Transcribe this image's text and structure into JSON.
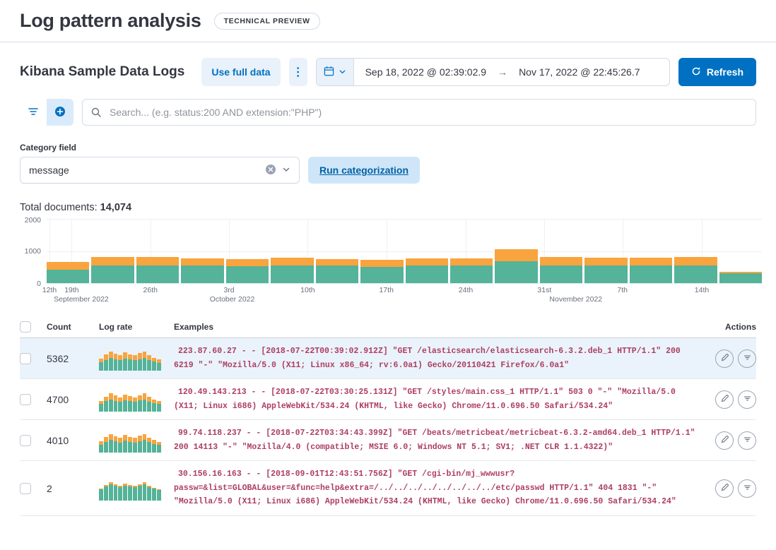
{
  "page": {
    "title": "Log pattern analysis",
    "badge": "TECHNICAL PREVIEW"
  },
  "toolbar": {
    "heading": "Kibana Sample Data Logs",
    "use_full_data": "Use full data",
    "dots_icon": "⋮",
    "date_start": "Sep 18, 2022 @ 02:39:02.9",
    "date_arrow": "→",
    "date_end": "Nov 17, 2022 @ 22:45:26.7",
    "refresh": "Refresh"
  },
  "search": {
    "placeholder": "Search... (e.g. status:200 AND extension:\"PHP\")"
  },
  "category": {
    "label": "Category field",
    "selected": "message",
    "run_button": "Run categorization"
  },
  "summary": {
    "total_label": "Total documents: ",
    "total_value": "14,074"
  },
  "chart_data": {
    "type": "bar",
    "stacked": true,
    "title": "Total documents over time",
    "ylim": [
      0,
      2000
    ],
    "y_ticks": [
      "2000",
      "1000",
      "0"
    ],
    "colors": {
      "green": "#54b399",
      "orange": "#f9a43e"
    },
    "bars": [
      {
        "green": 420,
        "orange": 240
      },
      {
        "green": 560,
        "orange": 260
      },
      {
        "green": 560,
        "orange": 250
      },
      {
        "green": 540,
        "orange": 220
      },
      {
        "green": 530,
        "orange": 210
      },
      {
        "green": 550,
        "orange": 240
      },
      {
        "green": 540,
        "orange": 210
      },
      {
        "green": 500,
        "orange": 220
      },
      {
        "green": 540,
        "orange": 230
      },
      {
        "green": 550,
        "orange": 230
      },
      {
        "green": 680,
        "orange": 370
      },
      {
        "green": 560,
        "orange": 260
      },
      {
        "green": 550,
        "orange": 250
      },
      {
        "green": 540,
        "orange": 250
      },
      {
        "green": 560,
        "orange": 250
      },
      {
        "green": 300,
        "orange": 60
      }
    ],
    "ticks": [
      {
        "label": "12th",
        "pos": 0.4
      },
      {
        "label": "19th",
        "pos": 3.5
      },
      {
        "label": "26th",
        "pos": 14.5
      },
      {
        "label": "3rd",
        "pos": 25.5
      },
      {
        "label": "10th",
        "pos": 36.5
      },
      {
        "label": "17th",
        "pos": 47.5
      },
      {
        "label": "24th",
        "pos": 58.6
      },
      {
        "label": "31st",
        "pos": 69.6
      },
      {
        "label": "7th",
        "pos": 80.5
      },
      {
        "label": "14th",
        "pos": 91.6
      }
    ],
    "months": [
      {
        "label": "September 2022",
        "pos": 1.0
      },
      {
        "label": "October 2022",
        "pos": 22.8
      },
      {
        "label": "November 2022",
        "pos": 70.3
      }
    ]
  },
  "table": {
    "columns": [
      "Count",
      "Log rate",
      "Examples",
      "Actions"
    ],
    "rows": [
      {
        "count": "5362",
        "selected": true,
        "sparkline": [
          [
            34,
            16
          ],
          [
            44,
            22
          ],
          [
            52,
            26
          ],
          [
            47,
            23
          ],
          [
            43,
            21
          ],
          [
            49,
            25
          ],
          [
            45,
            22
          ],
          [
            43,
            21
          ],
          [
            47,
            24
          ],
          [
            52,
            26
          ],
          [
            43,
            21
          ],
          [
            36,
            17
          ],
          [
            32,
            14
          ]
        ],
        "example": "223.87.60.27 - - [2018-07-22T00:39:02.912Z] \"GET /elasticsearch/elasticsearch-6.3.2.deb_1 HTTP/1.1\" 200 6219 \"-\" \"Mozilla/5.0 (X11; Linux x86_64; rv:6.0a1) Gecko/20110421 Firefox/6.0a1\""
      },
      {
        "count": "4700",
        "selected": false,
        "sparkline": [
          [
            30,
            14
          ],
          [
            42,
            20
          ],
          [
            50,
            24
          ],
          [
            44,
            22
          ],
          [
            40,
            19
          ],
          [
            47,
            23
          ],
          [
            43,
            21
          ],
          [
            40,
            19
          ],
          [
            45,
            22
          ],
          [
            50,
            25
          ],
          [
            41,
            19
          ],
          [
            34,
            15
          ],
          [
            30,
            13
          ]
        ],
        "example": "120.49.143.213 - - [2018-07-22T03:30:25.131Z] \"GET /styles/main.css_1 HTTP/1.1\" 503 0 \"-\" \"Mozilla/5.0 (X11; Linux i686) AppleWebKit/534.24 (KHTML, like Gecko) Chrome/11.0.696.50 Safari/534.24\""
      },
      {
        "count": "4010",
        "selected": false,
        "sparkline": [
          [
            32,
            15
          ],
          [
            43,
            21
          ],
          [
            51,
            25
          ],
          [
            45,
            22
          ],
          [
            41,
            20
          ],
          [
            48,
            24
          ],
          [
            44,
            21
          ],
          [
            41,
            20
          ],
          [
            46,
            23
          ],
          [
            51,
            25
          ],
          [
            42,
            20
          ],
          [
            35,
            16
          ],
          [
            31,
            13
          ]
        ],
        "example": "99.74.118.237 - - [2018-07-22T03:34:43.399Z] \"GET /beats/metricbeat/metricbeat-6.3.2-amd64.deb_1 HTTP/1.1\" 200 14113 \"-\" \"Mozilla/4.0 (compatible; MSIE 6.0; Windows NT 5.1; SV1; .NET CLR 1.1.4322)\""
      },
      {
        "count": "2",
        "selected": false,
        "sparkline": [
          [
            46,
            4
          ],
          [
            58,
            6
          ],
          [
            66,
            8
          ],
          [
            60,
            6
          ],
          [
            55,
            5
          ],
          [
            62,
            7
          ],
          [
            58,
            6
          ],
          [
            55,
            5
          ],
          [
            60,
            7
          ],
          [
            66,
            8
          ],
          [
            56,
            5
          ],
          [
            48,
            4
          ],
          [
            42,
            3
          ]
        ],
        "example": "30.156.16.163 - - [2018-09-01T12:43:51.756Z] \"GET /cgi-bin/mj_wwwusr?passw=&list=GLOBAL&user=&func=help&extra=/../../../../../../../../etc/passwd HTTP/1.1\" 404 1831 \"-\" \"Mozilla/5.0 (X11; Linux i686) AppleWebKit/534.24 (KHTML, like Gecko) Chrome/11.0.696.50 Safari/534.24\""
      }
    ]
  }
}
